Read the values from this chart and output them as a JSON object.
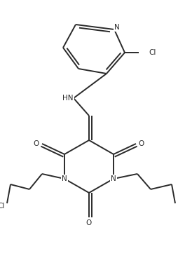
{
  "bg_color": "#ffffff",
  "line_color": "#2a2a2a",
  "line_width": 1.4,
  "font_size": 7.5,
  "figsize": [
    2.55,
    3.68
  ],
  "dpi": 100,
  "xlim": [
    0,
    255
  ],
  "ylim": [
    0,
    368
  ]
}
